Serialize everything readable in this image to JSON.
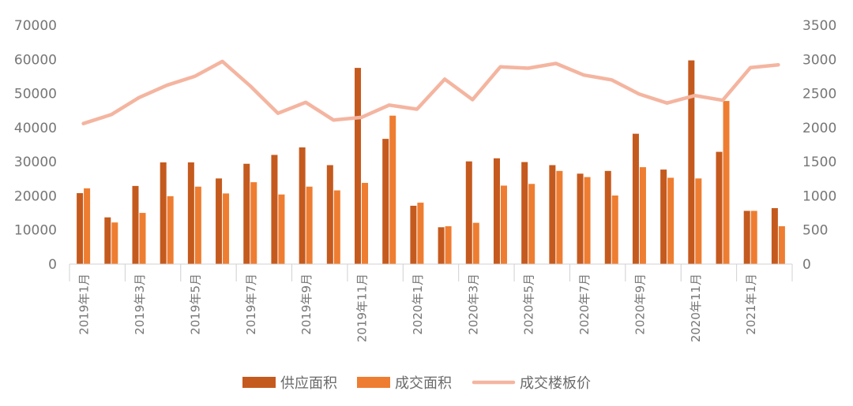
{
  "chart_data": {
    "type": "bar",
    "categories": [
      "2019年1月",
      "2019年2月",
      "2019年3月",
      "2019年4月",
      "2019年5月",
      "2019年6月",
      "2019年7月",
      "2019年8月",
      "2019年9月",
      "2019年10月",
      "2019年11月",
      "2019年12月",
      "2020年1月",
      "2020年2月",
      "2020年3月",
      "2020年4月",
      "2020年5月",
      "2020年6月",
      "2020年7月",
      "2020年8月",
      "2020年9月",
      "2020年10月",
      "2020年11月",
      "2020年12月",
      "2021年1月",
      "2021年2月"
    ],
    "x_tick_labels": [
      "2019年1月",
      "",
      "2019年3月",
      "",
      "2019年5月",
      "",
      "2019年7月",
      "",
      "2019年9月",
      "",
      "2019年11月",
      "",
      "2020年1月",
      "",
      "2020年3月",
      "",
      "2020年5月",
      "",
      "2020年7月",
      "",
      "2020年9月",
      "",
      "2020年11月",
      "",
      "2021年1月",
      ""
    ],
    "series": [
      {
        "name": "供应面积",
        "type": "bar",
        "axis": "left",
        "color": "#c55a1e",
        "values": [
          20800,
          13700,
          22900,
          29800,
          29800,
          25100,
          29400,
          32000,
          34200,
          29000,
          57500,
          36700,
          17100,
          10800,
          30100,
          31000,
          29900,
          29000,
          26500,
          27300,
          38200,
          27700,
          59700,
          32900,
          15600,
          16400
        ]
      },
      {
        "name": "成交面积",
        "type": "bar",
        "axis": "left",
        "color": "#ee7d31",
        "values": [
          22200,
          12200,
          15000,
          19900,
          22700,
          20700,
          24000,
          20400,
          22700,
          21600,
          23800,
          43500,
          18000,
          11100,
          12100,
          23000,
          23500,
          27300,
          25500,
          20100,
          28400,
          25300,
          25100,
          47800,
          15600,
          11100
        ]
      },
      {
        "name": "成交楼板价",
        "type": "line",
        "axis": "right",
        "color": "#f4b5a0",
        "values": [
          2060,
          2190,
          2440,
          2620,
          2750,
          2970,
          2610,
          2210,
          2370,
          2110,
          2150,
          2330,
          2270,
          2710,
          2410,
          2890,
          2870,
          2940,
          2770,
          2700,
          2490,
          2360,
          2470,
          2400,
          2880,
          2920
        ]
      }
    ],
    "y_left": {
      "min": 0,
      "max": 70000,
      "ticks": [
        0,
        10000,
        20000,
        30000,
        40000,
        50000,
        60000,
        70000
      ]
    },
    "y_right": {
      "min": 0,
      "max": 3500,
      "ticks": [
        0,
        500,
        1000,
        1500,
        2000,
        2500,
        3000,
        3500
      ]
    },
    "legend_position": "bottom",
    "grid": false
  }
}
